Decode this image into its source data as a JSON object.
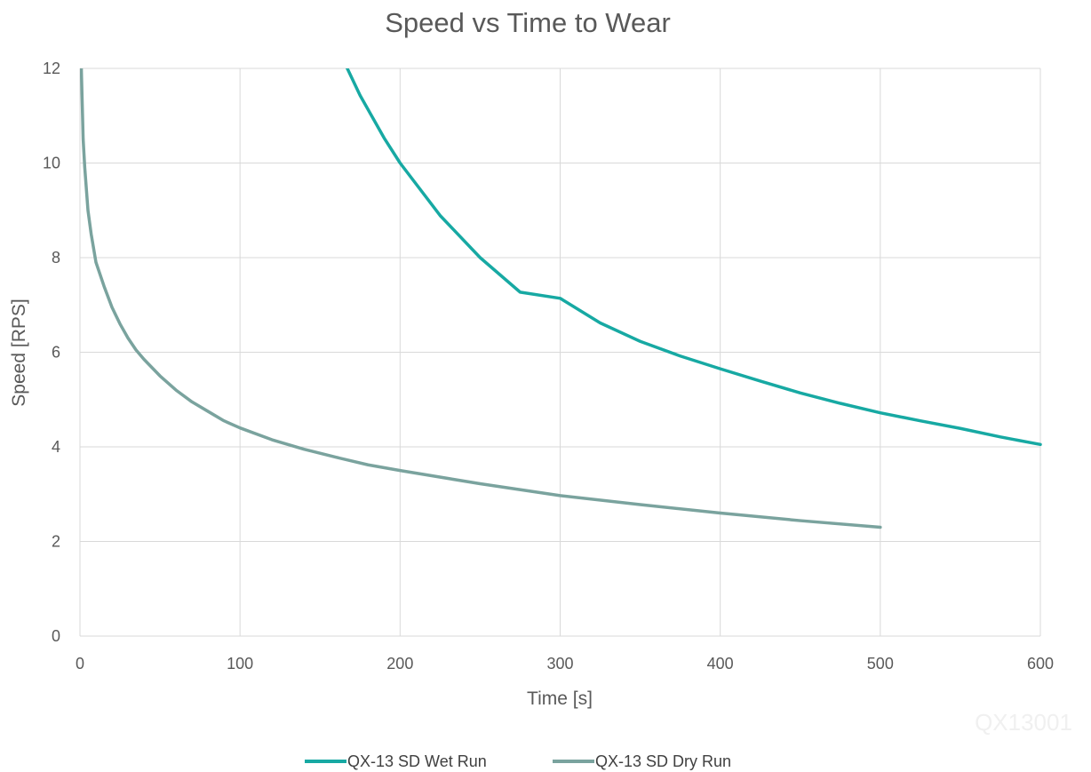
{
  "chart_data": {
    "type": "line",
    "title": "Speed vs Time to Wear",
    "xlabel": "Time [s]",
    "ylabel": "Speed [RPS]",
    "xlim": [
      0,
      600
    ],
    "ylim": [
      0,
      12
    ],
    "xticks": [
      0,
      100,
      200,
      300,
      400,
      500,
      600
    ],
    "yticks": [
      0,
      2,
      4,
      6,
      8,
      10,
      12
    ],
    "grid": true,
    "legend_position": "bottom",
    "watermark": "QX13001",
    "series": [
      {
        "name": "QX-13 SD Wet Run",
        "color": "#17a9a3",
        "points": [
          [
            160,
            12.5
          ],
          [
            175,
            11.43
          ],
          [
            190,
            10.53
          ],
          [
            200,
            10.0
          ],
          [
            225,
            8.89
          ],
          [
            250,
            8.0
          ],
          [
            275,
            7.27
          ],
          [
            300,
            7.14
          ],
          [
            325,
            6.62
          ],
          [
            350,
            6.23
          ],
          [
            375,
            5.92
          ],
          [
            400,
            5.65
          ],
          [
            425,
            5.39
          ],
          [
            450,
            5.14
          ],
          [
            475,
            4.92
          ],
          [
            500,
            4.72
          ],
          [
            525,
            4.55
          ],
          [
            550,
            4.39
          ],
          [
            575,
            4.21
          ],
          [
            600,
            4.05
          ]
        ]
      },
      {
        "name": "QX-13 SD Dry Run",
        "color": "#7aa39e",
        "points": [
          [
            0.5,
            12.5
          ],
          [
            1,
            11.8
          ],
          [
            2,
            10.5
          ],
          [
            3,
            9.9
          ],
          [
            5,
            9.0
          ],
          [
            7,
            8.5
          ],
          [
            10,
            7.9
          ],
          [
            15,
            7.4
          ],
          [
            20,
            6.95
          ],
          [
            25,
            6.6
          ],
          [
            30,
            6.3
          ],
          [
            35,
            6.05
          ],
          [
            40,
            5.85
          ],
          [
            50,
            5.5
          ],
          [
            60,
            5.2
          ],
          [
            70,
            4.95
          ],
          [
            80,
            4.75
          ],
          [
            90,
            4.55
          ],
          [
            100,
            4.4
          ],
          [
            120,
            4.15
          ],
          [
            140,
            3.95
          ],
          [
            160,
            3.78
          ],
          [
            180,
            3.62
          ],
          [
            200,
            3.5
          ],
          [
            250,
            3.22
          ],
          [
            300,
            2.97
          ],
          [
            350,
            2.78
          ],
          [
            400,
            2.6
          ],
          [
            450,
            2.44
          ],
          [
            500,
            2.3
          ]
        ]
      }
    ]
  }
}
